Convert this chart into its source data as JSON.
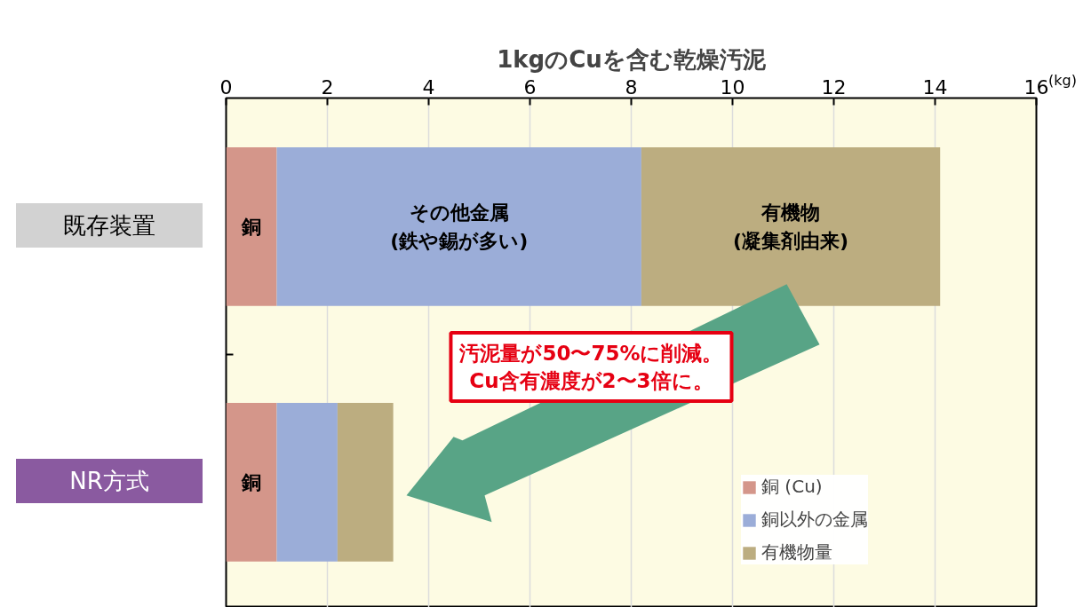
{
  "chart_data": {
    "type": "bar",
    "orientation": "horizontal",
    "stacked": true,
    "title": "1kgのCuを含む乾燥汚泥",
    "xlabel": "(kg)",
    "categories": [
      "既存装置",
      "NR方式"
    ],
    "series": [
      {
        "name": "銅 (Cu)",
        "color": "#d4968a",
        "values": [
          1.0,
          1.0
        ]
      },
      {
        "name": "銅以外の金属",
        "color": "#9badd8",
        "values": [
          7.2,
          1.2
        ]
      },
      {
        "name": "有機物量",
        "color": "#bcad80",
        "values": [
          5.9,
          1.1
        ]
      }
    ],
    "xlim": [
      0,
      16
    ],
    "xticks": [
      0,
      2,
      4,
      6,
      8,
      10,
      12,
      14,
      16
    ],
    "grid": "x",
    "legend": "bottom right",
    "annotations": [
      "銅",
      "その他金属\n(鉄や錫が多い)",
      "有機物\n(凝集剤由来)",
      "銅",
      "汚泥量が50〜75%に削減。\nCu含有濃度が2〜3倍に。"
    ]
  }
}
